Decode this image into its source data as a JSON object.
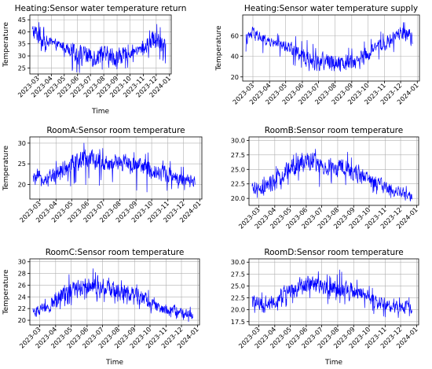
{
  "figure": {
    "series_color": "#0000ff",
    "grid": true
  },
  "chart_data": [
    {
      "type": "line",
      "title": "Heating:Sensor water temperature return",
      "xlabel": "Time",
      "ylabel": "Temperature",
      "x_ticks": [
        "2023-03",
        "2023-04",
        "2023-05",
        "2023-06",
        "2023-07",
        "2023-08",
        "2023-09",
        "2023-10",
        "2023-11",
        "2023-12",
        "2024-01"
      ],
      "y_ticks": [
        25,
        30,
        35,
        40,
        45
      ],
      "ylim": [
        22.5,
        47
      ],
      "xlim": [
        "2023-02-10",
        "2024-01-05"
      ],
      "data_range": [
        "2023-02-16",
        "2023-12-23"
      ],
      "series": [
        {
          "x": [
            "2023-02-16",
            "2023-03-01",
            "2023-03-15",
            "2023-04-01",
            "2023-04-15",
            "2023-05-01",
            "2023-05-15",
            "2023-06-01",
            "2023-06-15",
            "2023-07-01",
            "2023-07-15",
            "2023-08-01",
            "2023-08-15",
            "2023-09-01",
            "2023-09-15",
            "2023-10-01",
            "2023-10-15",
            "2023-11-01",
            "2023-11-15",
            "2023-12-01",
            "2023-12-15",
            "2023-12-23"
          ],
          "y": [
            40,
            39,
            36,
            35,
            34.5,
            34,
            33,
            31,
            30,
            30,
            30,
            30,
            29.5,
            29.5,
            30,
            31,
            32,
            33,
            35,
            37,
            35,
            33
          ],
          "spread": [
            3,
            4,
            3,
            2,
            2,
            2,
            3,
            4,
            4,
            4,
            4,
            4,
            4,
            4,
            3.5,
            2,
            2,
            2.5,
            4,
            5,
            5,
            4
          ],
          "min": [
            33,
            31,
            31,
            30,
            30,
            29,
            24,
            23,
            23,
            23,
            23,
            23,
            23,
            23,
            23,
            26,
            27,
            27,
            28,
            25,
            26,
            27
          ],
          "max": [
            46,
            46.5,
            42,
            38,
            37.5,
            37,
            36,
            35,
            34,
            34,
            34,
            34,
            34,
            34,
            34,
            35,
            36,
            37,
            42,
            44,
            43,
            41
          ]
        }
      ]
    },
    {
      "type": "line",
      "title": "Heating:Sensor water temperature supply",
      "xlabel": "",
      "ylabel": "Temperature",
      "x_ticks": [
        "2023-03",
        "2023-04",
        "2023-05",
        "2023-06",
        "2023-07",
        "2023-08",
        "2023-09",
        "2023-10",
        "2023-11",
        "2023-12",
        "2024-01"
      ],
      "y_ticks": [
        20,
        40,
        60
      ],
      "ylim": [
        16,
        80
      ],
      "xlim": [
        "2023-02-10",
        "2024-01-05"
      ],
      "data_range": [
        "2023-02-16",
        "2023-12-23"
      ],
      "series": [
        {
          "x": [
            "2023-02-16",
            "2023-03-01",
            "2023-03-15",
            "2023-04-01",
            "2023-04-15",
            "2023-05-01",
            "2023-05-15",
            "2023-06-01",
            "2023-06-15",
            "2023-07-01",
            "2023-07-15",
            "2023-08-01",
            "2023-08-15",
            "2023-09-01",
            "2023-09-15",
            "2023-10-01",
            "2023-10-15",
            "2023-11-01",
            "2023-11-15",
            "2023-12-01",
            "2023-12-15",
            "2023-12-23"
          ],
          "y": [
            56,
            62,
            58,
            54,
            53,
            50,
            48,
            40,
            36,
            35,
            35,
            35,
            35,
            35,
            36,
            42,
            48,
            52,
            56,
            62,
            58,
            56
          ],
          "spread": [
            5,
            6,
            5,
            4,
            4,
            5,
            6,
            8,
            8,
            8,
            8,
            8,
            8,
            8,
            8,
            6,
            5,
            5,
            6,
            7,
            8,
            7
          ],
          "min": [
            44,
            42,
            42,
            40,
            40,
            30,
            26,
            25,
            25,
            25,
            25,
            25,
            25,
            25,
            25,
            28,
            35,
            40,
            42,
            30,
            22,
            25
          ],
          "max": [
            68,
            76,
            72,
            64,
            63,
            62,
            62,
            58,
            54,
            52,
            52,
            52,
            52,
            52,
            52,
            58,
            62,
            66,
            70,
            76,
            72,
            68
          ]
        }
      ]
    },
    {
      "type": "line",
      "title": "RoomA:Sensor room temperature",
      "xlabel": "",
      "ylabel": "Temperature",
      "x_ticks": [
        "2023-03",
        "2023-04",
        "2023-05",
        "2023-06",
        "2023-07",
        "2023-08",
        "2023-09",
        "2023-10",
        "2023-11",
        "2023-12",
        "2024-01"
      ],
      "y_ticks": [
        20,
        25,
        30
      ],
      "ylim": [
        16.5,
        31.5
      ],
      "xlim": [
        "2023-02-10",
        "2024-01-05"
      ],
      "data_range": [
        "2023-02-16",
        "2023-12-23"
      ],
      "series": [
        {
          "x": [
            "2023-02-16",
            "2023-03-01",
            "2023-03-15",
            "2023-04-01",
            "2023-04-15",
            "2023-05-01",
            "2023-05-15",
            "2023-06-01",
            "2023-06-15",
            "2023-07-01",
            "2023-07-15",
            "2023-08-01",
            "2023-08-15",
            "2023-09-01",
            "2023-09-15",
            "2023-10-01",
            "2023-10-15",
            "2023-11-01",
            "2023-11-15",
            "2023-12-01",
            "2023-12-15",
            "2023-12-23"
          ],
          "y": [
            21.5,
            21.5,
            21.5,
            22.5,
            24,
            25,
            25.5,
            26.5,
            26,
            25.5,
            25,
            25,
            25,
            24.5,
            24,
            23.5,
            23,
            22.5,
            22,
            21,
            20.5,
            20.5
          ],
          "spread": [
            1.2,
            1.2,
            1.5,
            2,
            2.2,
            2.2,
            2.2,
            2.5,
            2.2,
            2.2,
            2,
            2,
            2.2,
            2,
            2,
            2,
            1.8,
            1.8,
            1.6,
            1.5,
            1.5,
            1.5
          ],
          "min": [
            19.5,
            19.5,
            19.5,
            20,
            20.5,
            19,
            19,
            20,
            19,
            19.5,
            19.5,
            19.5,
            19,
            18.5,
            18.5,
            17,
            18.5,
            18.5,
            18.5,
            18,
            18,
            18
          ],
          "max": [
            24,
            24,
            24,
            26,
            28,
            29,
            29.5,
            30.5,
            30,
            29,
            29,
            29,
            29,
            28.5,
            28,
            27.5,
            27,
            26,
            25.5,
            24.5,
            23.5,
            23.5
          ]
        }
      ]
    },
    {
      "type": "line",
      "title": "RoomB:Sensor room temperature",
      "xlabel": "",
      "ylabel": "",
      "x_ticks": [
        "2023-03",
        "2023-04",
        "2023-05",
        "2023-06",
        "2023-07",
        "2023-08",
        "2023-09",
        "2023-10",
        "2023-11",
        "2023-12",
        "2024-01"
      ],
      "y_ticks": [
        20.0,
        22.5,
        25.0,
        27.5,
        30.0
      ],
      "y_tick_labels": [
        "20.0",
        "22.5",
        "25.0",
        "27.5",
        "30.0"
      ],
      "ylim": [
        18.8,
        30.6
      ],
      "xlim": [
        "2023-02-10",
        "2024-01-05"
      ],
      "data_range": [
        "2023-02-16",
        "2023-12-23"
      ],
      "series": [
        {
          "x": [
            "2023-02-16",
            "2023-03-01",
            "2023-03-15",
            "2023-04-01",
            "2023-04-15",
            "2023-05-01",
            "2023-05-15",
            "2023-06-01",
            "2023-06-15",
            "2023-07-01",
            "2023-07-15",
            "2023-08-01",
            "2023-08-15",
            "2023-09-01",
            "2023-09-15",
            "2023-10-01",
            "2023-10-15",
            "2023-11-01",
            "2023-11-15",
            "2023-12-01",
            "2023-12-15",
            "2023-12-23"
          ],
          "y": [
            21.5,
            21.5,
            22,
            23,
            24,
            25,
            25.8,
            26.5,
            26.3,
            25.8,
            25.5,
            25.3,
            25,
            24.5,
            24,
            23.3,
            22.5,
            22,
            21.5,
            21,
            20.5,
            20
          ],
          "spread": [
            1,
            1,
            1.2,
            1.5,
            1.5,
            1.5,
            1.5,
            1.6,
            1.5,
            1.5,
            1.5,
            1.5,
            1.6,
            1.5,
            1.4,
            1.2,
            1.2,
            1.1,
            1,
            1,
            0.9,
            0.8
          ],
          "min": [
            20,
            20,
            20.5,
            21,
            21.5,
            22,
            22.5,
            22,
            22,
            22,
            22.5,
            22.5,
            22,
            22,
            21.5,
            21,
            20.5,
            20.5,
            20,
            19.5,
            19.3,
            19.3
          ],
          "max": [
            23,
            23,
            24,
            25.5,
            26.5,
            27.5,
            28.5,
            29.8,
            29.5,
            28.5,
            28.5,
            28.3,
            28.5,
            27.5,
            26.5,
            25.5,
            25,
            24,
            23.5,
            23,
            22,
            21.5
          ]
        }
      ]
    },
    {
      "type": "line",
      "title": "RoomC:Sensor room temperature",
      "xlabel": "Time",
      "ylabel": "Temperature",
      "x_ticks": [
        "2023-03",
        "2023-04",
        "2023-05",
        "2023-06",
        "2023-07",
        "2023-08",
        "2023-09",
        "2023-10",
        "2023-11",
        "2023-12",
        "2024-01"
      ],
      "y_ticks": [
        20,
        22,
        24,
        26,
        28,
        30
      ],
      "ylim": [
        19.2,
        30.5
      ],
      "xlim": [
        "2023-02-10",
        "2024-01-05"
      ],
      "data_range": [
        "2023-02-16",
        "2023-12-23"
      ],
      "series": [
        {
          "x": [
            "2023-02-16",
            "2023-03-01",
            "2023-03-15",
            "2023-04-01",
            "2023-04-15",
            "2023-05-01",
            "2023-05-15",
            "2023-06-01",
            "2023-06-15",
            "2023-07-01",
            "2023-07-15",
            "2023-08-01",
            "2023-08-15",
            "2023-09-01",
            "2023-09-15",
            "2023-10-01",
            "2023-10-15",
            "2023-11-01",
            "2023-11-15",
            "2023-12-01",
            "2023-12-15",
            "2023-12-23"
          ],
          "y": [
            21.5,
            21.7,
            22,
            23.5,
            24.5,
            25,
            25.5,
            26.2,
            26,
            25.8,
            25.5,
            25,
            24.7,
            24.3,
            23.8,
            23,
            22.2,
            21.8,
            21.5,
            21.3,
            21,
            20.8
          ],
          "spread": [
            0.8,
            0.8,
            1,
            1.5,
            1.5,
            1.5,
            1.5,
            1.6,
            1.5,
            1.4,
            1.4,
            1.4,
            1.4,
            1.3,
            1.3,
            1.1,
            1,
            0.9,
            0.9,
            0.8,
            0.8,
            0.8
          ],
          "min": [
            20.5,
            20.5,
            20.5,
            21,
            22,
            22.5,
            23,
            23.5,
            23,
            23,
            23,
            22.5,
            22.5,
            22,
            21.5,
            21,
            20.5,
            20.5,
            20,
            20,
            19.7,
            19.7
          ],
          "max": [
            23,
            24,
            24,
            27,
            30,
            28.5,
            28.5,
            29.5,
            29,
            28,
            28,
            27.5,
            27,
            26.5,
            26,
            25,
            24,
            23.5,
            23,
            22.5,
            22.5,
            22
          ]
        }
      ]
    },
    {
      "type": "line",
      "title": "RoomD:Sensor room temperature",
      "xlabel": "Time",
      "ylabel": "",
      "x_ticks": [
        "2023-03",
        "2023-04",
        "2023-05",
        "2023-06",
        "2023-07",
        "2023-08",
        "2023-09",
        "2023-10",
        "2023-11",
        "2023-12",
        "2024-01"
      ],
      "y_ticks": [
        17.5,
        20.0,
        22.5,
        25.0,
        27.5,
        30.0
      ],
      "y_tick_labels": [
        "17.5",
        "20.0",
        "22.5",
        "25.0",
        "27.5",
        "30.0"
      ],
      "ylim": [
        16.8,
        30.7
      ],
      "xlim": [
        "2023-02-10",
        "2024-01-05"
      ],
      "data_range": [
        "2023-02-16",
        "2023-12-23"
      ],
      "series": [
        {
          "x": [
            "2023-02-16",
            "2023-03-01",
            "2023-03-15",
            "2023-04-01",
            "2023-04-15",
            "2023-05-01",
            "2023-05-15",
            "2023-06-01",
            "2023-06-15",
            "2023-07-01",
            "2023-07-15",
            "2023-08-01",
            "2023-08-15",
            "2023-09-01",
            "2023-09-15",
            "2023-10-01",
            "2023-10-15",
            "2023-11-01",
            "2023-11-15",
            "2023-12-01",
            "2023-12-15",
            "2023-12-23"
          ],
          "y": [
            21.5,
            21.5,
            21.5,
            22,
            23,
            24,
            24.5,
            25.5,
            25.5,
            25,
            24.5,
            24.3,
            24,
            23.8,
            23.5,
            22.5,
            21.5,
            21,
            20.5,
            20.5,
            20.5,
            20.2
          ],
          "spread": [
            1.5,
            1.5,
            1.5,
            1.5,
            1.6,
            1.6,
            1.6,
            1.8,
            1.8,
            1.6,
            1.6,
            1.6,
            1.8,
            1.6,
            1.5,
            1.4,
            1.3,
            1.2,
            1.2,
            1.2,
            1.2,
            1
          ],
          "min": [
            19,
            19,
            19,
            19.5,
            20,
            21,
            21.5,
            22,
            22,
            18.5,
            21.5,
            21.5,
            21,
            21,
            20.5,
            19.5,
            18.5,
            18,
            17.5,
            18,
            18.5,
            18.5
          ],
          "max": [
            24,
            24.5,
            24.5,
            25,
            26,
            27.5,
            28,
            29,
            28.5,
            28,
            27.5,
            28,
            30,
            27.5,
            27,
            25.5,
            24,
            23.5,
            23,
            23,
            23,
            22.5
          ]
        }
      ]
    }
  ]
}
